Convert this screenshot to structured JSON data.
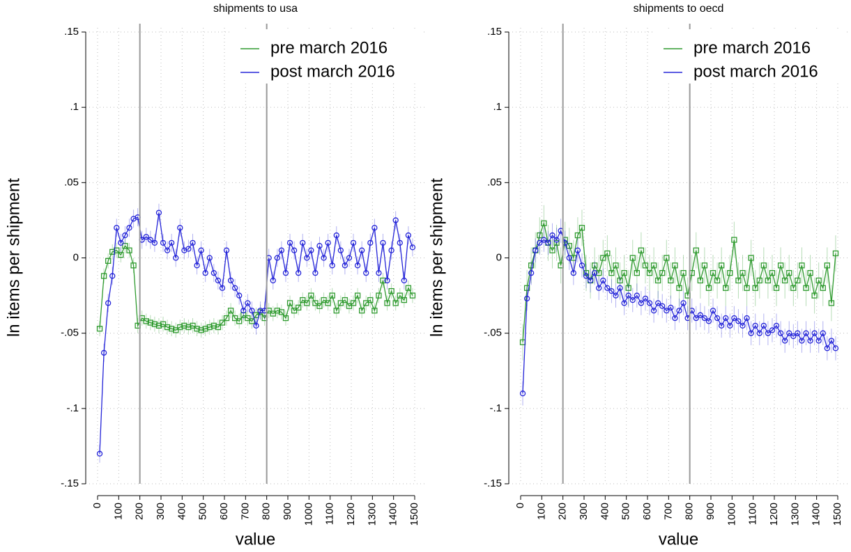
{
  "chart_data": [
    {
      "type": "line",
      "title": "shipments to usa",
      "xlabel": "value",
      "ylabel": "ln items per shipment",
      "x": [
        10,
        30,
        50,
        70,
        90,
        110,
        130,
        150,
        170,
        190,
        210,
        230,
        250,
        270,
        290,
        310,
        330,
        350,
        370,
        390,
        410,
        430,
        450,
        470,
        490,
        510,
        530,
        550,
        570,
        590,
        610,
        630,
        650,
        670,
        690,
        710,
        730,
        750,
        770,
        790,
        810,
        830,
        850,
        870,
        890,
        910,
        930,
        950,
        970,
        990,
        1010,
        1030,
        1050,
        1070,
        1090,
        1110,
        1130,
        1150,
        1170,
        1190,
        1210,
        1230,
        1250,
        1270,
        1290,
        1310,
        1330,
        1350,
        1370,
        1390,
        1410,
        1430,
        1450,
        1470,
        1490
      ],
      "series": [
        {
          "name": "pre march 2016",
          "color": "#2e9a2e",
          "marker": "square",
          "error": 0.005,
          "values": [
            -0.047,
            -0.012,
            -0.002,
            0.004,
            0.005,
            0.002,
            0.008,
            0.005,
            -0.005,
            -0.045,
            -0.04,
            -0.042,
            -0.043,
            -0.044,
            -0.045,
            -0.044,
            -0.046,
            -0.047,
            -0.048,
            -0.046,
            -0.045,
            -0.046,
            -0.045,
            -0.047,
            -0.048,
            -0.047,
            -0.046,
            -0.045,
            -0.046,
            -0.043,
            -0.04,
            -0.035,
            -0.04,
            -0.042,
            -0.038,
            -0.04,
            -0.042,
            -0.038,
            -0.036,
            -0.04,
            -0.035,
            -0.037,
            -0.035,
            -0.036,
            -0.04,
            -0.03,
            -0.035,
            -0.033,
            -0.028,
            -0.03,
            -0.025,
            -0.03,
            -0.032,
            -0.028,
            -0.03,
            -0.025,
            -0.035,
            -0.03,
            -0.028,
            -0.032,
            -0.03,
            -0.025,
            -0.035,
            -0.03,
            -0.028,
            -0.035,
            -0.025,
            -0.015,
            -0.03,
            -0.022,
            -0.03,
            -0.025,
            -0.028,
            -0.02,
            -0.025
          ]
        },
        {
          "name": "post march 2016",
          "color": "#2323d8",
          "marker": "circle",
          "error": 0.006,
          "values": [
            -0.13,
            -0.063,
            -0.03,
            -0.012,
            0.02,
            0.01,
            0.015,
            0.02,
            0.026,
            0.027,
            0.012,
            0.014,
            0.012,
            0.01,
            0.03,
            0.01,
            0.005,
            0.01,
            0,
            0.02,
            0.005,
            0.006,
            0.01,
            -0.005,
            0.005,
            -0.01,
            0,
            -0.01,
            -0.015,
            -0.02,
            0.005,
            -0.015,
            -0.02,
            -0.025,
            -0.035,
            -0.03,
            -0.035,
            -0.045,
            -0.035,
            -0.035,
            0,
            -0.015,
            0,
            0.005,
            -0.01,
            0.01,
            0.005,
            -0.01,
            0.01,
            0,
            0.005,
            -0.01,
            0.008,
            0,
            0.01,
            -0.005,
            0.015,
            0.005,
            -0.005,
            0,
            0.01,
            -0.005,
            0.005,
            -0.01,
            0.01,
            0.02,
            -0.01,
            0.01,
            -0.015,
            0.005,
            0.025,
            0.01,
            -0.015,
            0.015,
            0.007
          ]
        }
      ],
      "xlim": [
        0,
        1500
      ],
      "ylim": [
        -0.15,
        0.15
      ],
      "xticks": [
        0,
        100,
        200,
        300,
        400,
        500,
        600,
        700,
        800,
        900,
        1000,
        1100,
        1200,
        1300,
        1400,
        1500
      ],
      "yticks": [
        {
          "value": -0.15,
          "label": "-.15"
        },
        {
          "value": -0.1,
          "label": "-.1"
        },
        {
          "value": -0.05,
          "label": "-.05"
        },
        0,
        {
          "value": 0.05,
          "label": ".05"
        },
        {
          "value": 0.1,
          "label": ".1"
        },
        {
          "value": 0.15,
          "label": ".15"
        }
      ],
      "vlines": [
        200,
        800
      ],
      "grid": true,
      "legend": "top-right"
    },
    {
      "type": "line",
      "title": "shipments to oecd",
      "xlabel": "value",
      "ylabel": "ln items per shipment",
      "x": [
        10,
        30,
        50,
        70,
        90,
        110,
        130,
        150,
        170,
        190,
        210,
        230,
        250,
        270,
        290,
        310,
        330,
        350,
        370,
        390,
        410,
        430,
        450,
        470,
        490,
        510,
        530,
        550,
        570,
        590,
        610,
        630,
        650,
        670,
        690,
        710,
        730,
        750,
        770,
        790,
        810,
        830,
        850,
        870,
        890,
        910,
        930,
        950,
        970,
        990,
        1010,
        1030,
        1050,
        1070,
        1090,
        1110,
        1130,
        1150,
        1170,
        1190,
        1210,
        1230,
        1250,
        1270,
        1290,
        1310,
        1330,
        1350,
        1370,
        1390,
        1410,
        1430,
        1450,
        1470,
        1490
      ],
      "series": [
        {
          "name": "pre march 2016",
          "color": "#2e9a2e",
          "marker": "square",
          "error": 0.012,
          "values": [
            -0.056,
            -0.02,
            -0.005,
            0.005,
            0.015,
            0.023,
            0.01,
            0.005,
            0.01,
            -0.005,
            0.012,
            0.008,
            0,
            0.015,
            0.02,
            -0.01,
            -0.015,
            -0.005,
            -0.01,
            0,
            0.003,
            -0.01,
            -0.005,
            -0.015,
            -0.01,
            -0.02,
            0,
            -0.01,
            0.005,
            -0.005,
            -0.01,
            -0.005,
            -0.015,
            -0.01,
            0,
            -0.015,
            -0.005,
            -0.02,
            -0.01,
            -0.025,
            -0.01,
            0.005,
            -0.015,
            -0.005,
            -0.02,
            -0.01,
            -0.015,
            -0.005,
            -0.02,
            -0.01,
            0.012,
            -0.015,
            -0.01,
            -0.02,
            0,
            -0.02,
            -0.015,
            -0.005,
            -0.015,
            -0.01,
            -0.02,
            -0.005,
            -0.015,
            -0.01,
            -0.02,
            -0.015,
            -0.005,
            -0.02,
            -0.01,
            -0.025,
            -0.015,
            -0.02,
            -0.005,
            -0.03,
            0.003
          ]
        },
        {
          "name": "post march 2016",
          "color": "#2323d8",
          "marker": "circle",
          "error": 0.008,
          "values": [
            -0.09,
            -0.027,
            -0.01,
            0.005,
            0.01,
            0.012,
            0.01,
            0.015,
            0.012,
            0.018,
            0.01,
            0,
            -0.01,
            0.005,
            -0.005,
            -0.012,
            -0.015,
            -0.01,
            -0.02,
            -0.015,
            -0.02,
            -0.022,
            -0.025,
            -0.02,
            -0.03,
            -0.025,
            -0.028,
            -0.025,
            -0.03,
            -0.027,
            -0.03,
            -0.035,
            -0.03,
            -0.032,
            -0.035,
            -0.033,
            -0.04,
            -0.035,
            -0.03,
            -0.04,
            -0.035,
            -0.04,
            -0.038,
            -0.04,
            -0.042,
            -0.035,
            -0.04,
            -0.045,
            -0.04,
            -0.045,
            -0.04,
            -0.042,
            -0.045,
            -0.04,
            -0.05,
            -0.045,
            -0.05,
            -0.045,
            -0.05,
            -0.048,
            -0.045,
            -0.05,
            -0.055,
            -0.05,
            -0.052,
            -0.05,
            -0.055,
            -0.05,
            -0.055,
            -0.05,
            -0.055,
            -0.05,
            -0.06,
            -0.055,
            -0.06
          ]
        }
      ],
      "xlim": [
        0,
        1500
      ],
      "ylim": [
        -0.15,
        0.15
      ],
      "xticks": [
        0,
        100,
        200,
        300,
        400,
        500,
        600,
        700,
        800,
        900,
        1000,
        1100,
        1200,
        1300,
        1400,
        1500
      ],
      "yticks": [
        {
          "value": -0.15,
          "label": "-.15"
        },
        {
          "value": -0.1,
          "label": "-.1"
        },
        {
          "value": -0.05,
          "label": "-.05"
        },
        0,
        {
          "value": 0.05,
          "label": ".05"
        },
        {
          "value": 0.1,
          "label": ".1"
        },
        {
          "value": 0.15,
          "label": ".15"
        }
      ],
      "vlines": [
        200,
        800
      ],
      "grid": true,
      "legend": "top-right"
    }
  ]
}
